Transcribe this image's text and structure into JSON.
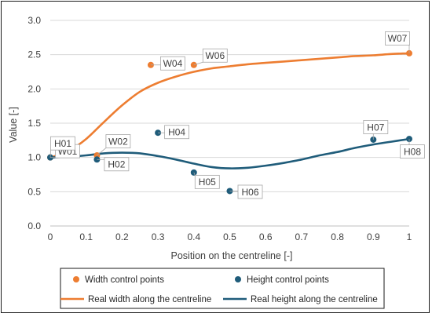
{
  "chart_data": {
    "type": "scatter",
    "title": "",
    "xlabel": "Position on the centreline [-]",
    "ylabel": "Value [-]",
    "xlim": [
      0,
      1
    ],
    "ylim": [
      0,
      3
    ],
    "xticks": [
      "0",
      "0.1",
      "0.2",
      "0.3",
      "0.4",
      "0.5",
      "0.6",
      "0.7",
      "0.8",
      "0.9",
      "1"
    ],
    "yticks": [
      "0.0",
      "0.5",
      "1.0",
      "1.5",
      "2.0",
      "2.5",
      "3.0"
    ],
    "grid": "horizontal",
    "legend_position": "bottom",
    "colors": {
      "width": "#ED7D31",
      "height": "#1F5C7A"
    },
    "series": [
      {
        "name": "Width control points",
        "kind": "markers",
        "color": "#ED7D31",
        "points": [
          {
            "label": "W01",
            "x": 0,
            "y": 1.0
          },
          {
            "label": "W02",
            "x": 0.13,
            "y": 1.03
          },
          {
            "label": "W04",
            "x": 0.28,
            "y": 2.35
          },
          {
            "label": "W06",
            "x": 0.4,
            "y": 2.35
          },
          {
            "label": "W07",
            "x": 1.0,
            "y": 2.52
          }
        ]
      },
      {
        "name": "Height control points",
        "kind": "markers",
        "color": "#1F5C7A",
        "points": [
          {
            "label": "H01",
            "x": 0,
            "y": 1.0
          },
          {
            "label": "H02",
            "x": 0.13,
            "y": 0.97
          },
          {
            "label": "H04",
            "x": 0.3,
            "y": 1.36
          },
          {
            "label": "H05",
            "x": 0.4,
            "y": 0.78
          },
          {
            "label": "H06",
            "x": 0.5,
            "y": 0.51
          },
          {
            "label": "H07",
            "x": 0.9,
            "y": 1.26
          },
          {
            "label": "H08",
            "x": 1.0,
            "y": 1.27
          }
        ]
      },
      {
        "name": "Real width along the centreline",
        "kind": "line",
        "color": "#ED7D31",
        "x": [
          0,
          0.05,
          0.1,
          0.15,
          0.2,
          0.25,
          0.3,
          0.35,
          0.4,
          0.45,
          0.5,
          0.55,
          0.6,
          0.65,
          0.7,
          0.75,
          0.8,
          0.85,
          0.9,
          0.95,
          1.0
        ],
        "y": [
          1.0,
          1.09,
          1.27,
          1.52,
          1.76,
          1.96,
          2.09,
          2.18,
          2.25,
          2.3,
          2.33,
          2.36,
          2.38,
          2.4,
          2.42,
          2.44,
          2.46,
          2.48,
          2.49,
          2.51,
          2.52
        ]
      },
      {
        "name": "Real height along the centreline",
        "kind": "line",
        "color": "#1F5C7A",
        "x": [
          0,
          0.05,
          0.1,
          0.15,
          0.2,
          0.25,
          0.3,
          0.35,
          0.4,
          0.45,
          0.5,
          0.55,
          0.6,
          0.65,
          0.7,
          0.75,
          0.8,
          0.85,
          0.9,
          0.95,
          1.0
        ],
        "y": [
          1.0,
          1.01,
          1.03,
          1.06,
          1.07,
          1.06,
          1.02,
          0.97,
          0.91,
          0.86,
          0.84,
          0.85,
          0.88,
          0.92,
          0.97,
          1.03,
          1.08,
          1.14,
          1.19,
          1.23,
          1.27
        ]
      }
    ]
  }
}
